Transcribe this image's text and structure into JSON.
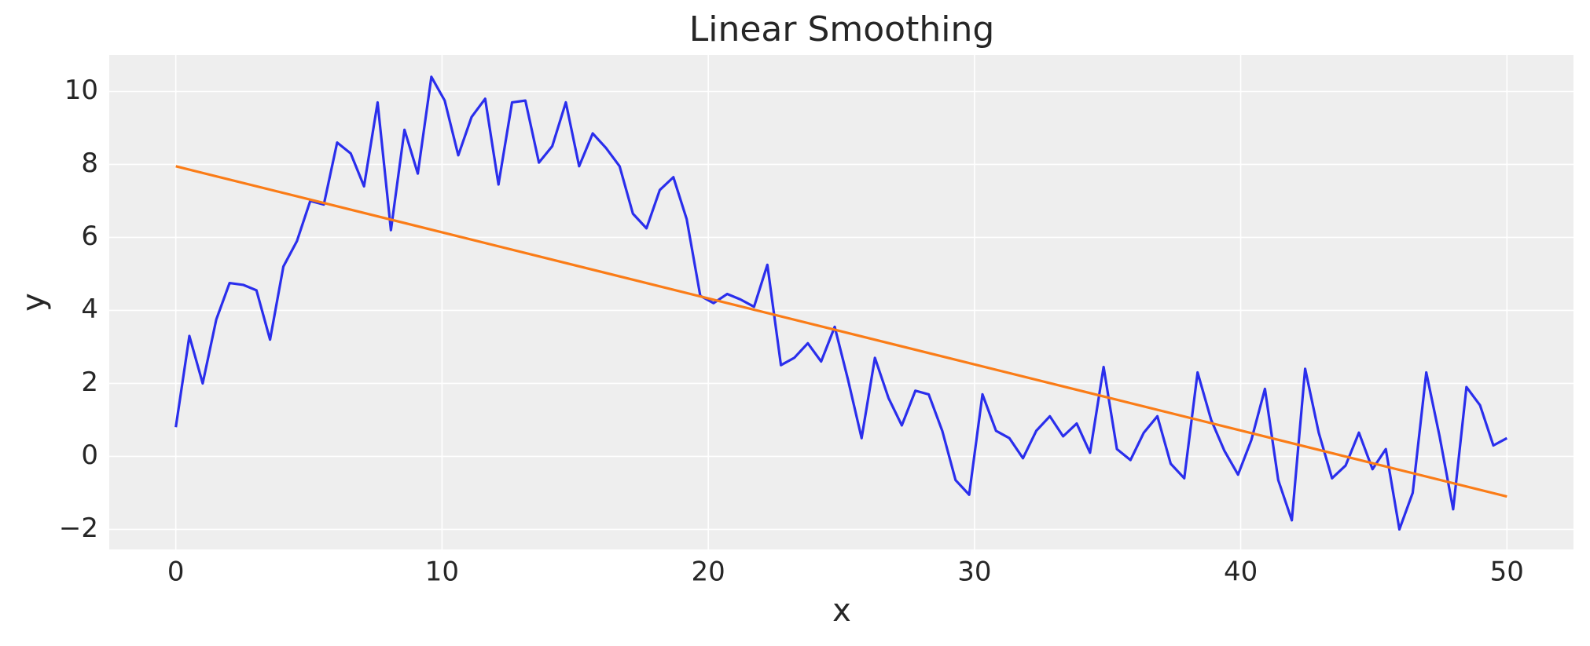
{
  "chart_data": {
    "type": "line",
    "title": "Linear Smoothing",
    "x_label": "x",
    "y_label": "y",
    "xlim": [
      -2.5,
      52.5
    ],
    "ylim": [
      -2.55,
      11.0
    ],
    "xticks": [
      0,
      10,
      20,
      30,
      40,
      50
    ],
    "yticks": [
      {
        "value": -2,
        "label": "−2"
      },
      0,
      2,
      4,
      6,
      8,
      10
    ],
    "grid": true,
    "series": [
      {
        "color": "#2a2eec",
        "x": [
          0,
          0.51,
          1.01,
          1.52,
          2.02,
          2.53,
          3.03,
          3.54,
          4.04,
          4.55,
          5.05,
          5.56,
          6.06,
          6.57,
          7.07,
          7.58,
          8.08,
          8.59,
          9.09,
          9.6,
          10.1,
          10.61,
          11.11,
          11.62,
          12.12,
          12.63,
          13.13,
          13.64,
          14.14,
          14.65,
          15.15,
          15.66,
          16.16,
          16.67,
          17.17,
          17.68,
          18.18,
          18.69,
          19.19,
          19.7,
          20.2,
          20.71,
          21.21,
          21.72,
          22.22,
          22.73,
          23.23,
          23.74,
          24.24,
          24.75,
          25.25,
          25.76,
          26.26,
          26.77,
          27.27,
          27.78,
          28.28,
          28.79,
          29.29,
          29.8,
          30.3,
          30.81,
          31.31,
          31.82,
          32.32,
          32.83,
          33.33,
          33.84,
          34.34,
          34.85,
          35.35,
          35.86,
          36.36,
          36.87,
          37.37,
          37.88,
          38.38,
          38.89,
          39.39,
          39.9,
          40.4,
          40.91,
          41.41,
          41.92,
          42.42,
          42.93,
          43.43,
          43.94,
          44.44,
          44.95,
          45.45,
          45.96,
          46.46,
          46.97,
          47.47,
          47.98,
          48.48,
          48.99,
          49.49,
          50
        ],
        "values": [
          0.8,
          3.3,
          2.0,
          3.75,
          4.75,
          4.7,
          4.55,
          3.2,
          5.2,
          5.9,
          7.0,
          6.9,
          8.6,
          8.3,
          7.4,
          9.7,
          6.2,
          8.95,
          7.75,
          10.4,
          9.75,
          8.25,
          9.3,
          9.8,
          7.45,
          9.7,
          9.75,
          8.05,
          8.5,
          9.7,
          7.95,
          8.85,
          8.45,
          7.95,
          6.65,
          6.25,
          7.3,
          7.65,
          6.5,
          4.4,
          4.2,
          4.45,
          4.3,
          4.1,
          5.25,
          2.5,
          2.7,
          3.1,
          2.6,
          3.55,
          2.1,
          0.5,
          2.7,
          1.6,
          0.85,
          1.8,
          1.7,
          0.7,
          -0.65,
          -1.05,
          1.7,
          0.7,
          0.5,
          -0.05,
          0.7,
          1.1,
          0.55,
          0.9,
          0.1,
          2.45,
          0.2,
          -0.1,
          0.65,
          1.1,
          -0.2,
          -0.6,
          2.3,
          1.0,
          0.15,
          -0.5,
          0.45,
          1.85,
          -0.65,
          -1.75,
          2.4,
          0.65,
          -0.6,
          -0.25,
          0.65,
          -0.35,
          0.2,
          -2.0,
          -1.0,
          2.3,
          0.55,
          -1.45,
          1.9,
          1.4,
          0.3,
          0.5
        ]
      },
      {
        "color": "#fa7c17",
        "x": [
          0,
          50
        ],
        "values": [
          7.95,
          -1.1
        ]
      }
    ]
  }
}
